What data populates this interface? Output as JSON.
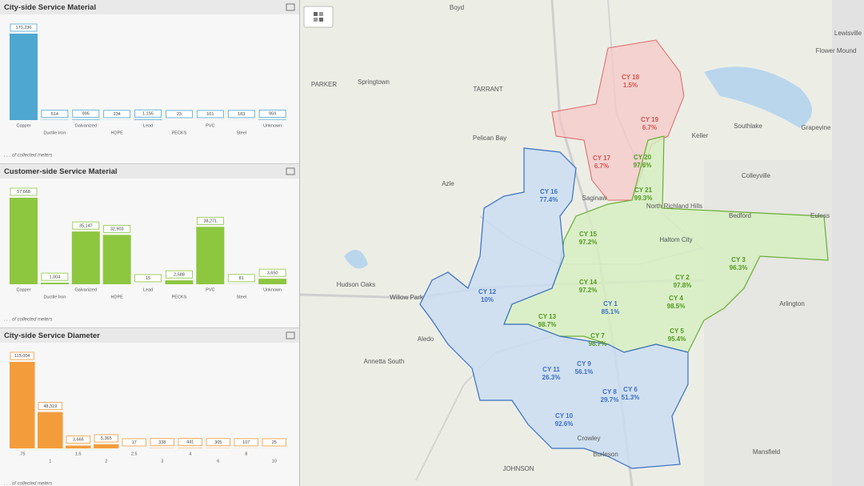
{
  "panels": [
    {
      "type": "bar",
      "title": "City-side Service Material",
      "color": "#4ea7d0",
      "categories": [
        "Copper",
        "Ductile Iron",
        "Galvanized",
        "HDPE",
        "Lead",
        "PECKS",
        "PVC",
        "Steel",
        "Unknown"
      ],
      "values": [
        170236,
        514,
        995,
        234,
        1155,
        23,
        101,
        183,
        959
      ],
      "value_labels": [
        "170,236",
        "514",
        "995",
        "234",
        "1,155",
        "23",
        "101",
        "183",
        "959"
      ],
      "footer": ". . . of collected meters"
    },
    {
      "type": "bar",
      "title": "Customer-side Service Material",
      "color": "#8dc63f",
      "categories": [
        "Copper",
        "Ductile Iron",
        "Galvanized",
        "HDPE",
        "Lead",
        "PECKS",
        "PVC",
        "Steel",
        "Unknown"
      ],
      "values": [
        57668,
        1004,
        35147,
        32903,
        15,
        2588,
        38271,
        81,
        3650
      ],
      "value_labels": [
        "57,668",
        "1,004",
        "35,147",
        "32,903",
        "15",
        "2,588",
        "38,271",
        "81",
        "3,650"
      ],
      "footer": ". . . of collected meters"
    },
    {
      "type": "bar",
      "title": "City-side Service Diameter",
      "color": "#f39c3c",
      "categories": [
        ".75",
        "1",
        "1.5",
        "2",
        "2.5",
        "3",
        "4",
        "6",
        "8",
        "10"
      ],
      "values": [
        115004,
        48319,
        3666,
        5365,
        17,
        338,
        441,
        305,
        107,
        25
      ],
      "value_labels": [
        "115,004",
        "48,319",
        "3,666",
        "5,365",
        "17",
        "338",
        "441",
        "305",
        "107",
        "25"
      ],
      "footer": ". . . of collected meters"
    }
  ],
  "map": {
    "zones": [
      {
        "name": "CY 1",
        "percent": "85.1%",
        "color": "#3a6fc4"
      },
      {
        "name": "CY 2",
        "percent": "97.8%",
        "color": "#4f9a1c"
      },
      {
        "name": "CY 3",
        "percent": "96.3%",
        "color": "#4f9a1c"
      },
      {
        "name": "CY 4",
        "percent": "98.5%",
        "color": "#4f9a1c"
      },
      {
        "name": "CY 5",
        "percent": "95.4%",
        "color": "#4f9a1c"
      },
      {
        "name": "CY 6",
        "percent": "51.3%",
        "color": "#3a6fc4"
      },
      {
        "name": "CY 7",
        "percent": "98.7%",
        "color": "#4f9a1c"
      },
      {
        "name": "CY 8",
        "percent": "29.7%",
        "color": "#3a6fc4"
      },
      {
        "name": "CY 9",
        "percent": "56.1%",
        "color": "#3a6fc4"
      },
      {
        "name": "CY 10",
        "percent": "92.6%",
        "color": "#3a6fc4"
      },
      {
        "name": "CY 11",
        "percent": "26.3%",
        "color": "#3a6fc4"
      },
      {
        "name": "CY 12",
        "percent": "10%",
        "color": "#3a6fc4"
      },
      {
        "name": "CY 13",
        "percent": "98.7%",
        "color": "#4f9a1c"
      },
      {
        "name": "CY 14",
        "percent": "97.2%",
        "color": "#4f9a1c"
      },
      {
        "name": "CY 15",
        "percent": "97.2%",
        "color": "#4f9a1c"
      },
      {
        "name": "CY 16",
        "percent": "77.4%",
        "color": "#3a6fc4"
      },
      {
        "name": "CY 17",
        "percent": "6.7%",
        "color": "#d9534f"
      },
      {
        "name": "CY 18",
        "percent": "1.5%",
        "color": "#d9534f"
      },
      {
        "name": "CY 19",
        "percent": "6.7%",
        "color": "#d9534f"
      },
      {
        "name": "CY 20",
        "percent": "97.6%",
        "color": "#4f9a1c"
      },
      {
        "name": "CY 21",
        "percent": "99.3%",
        "color": "#4f9a1c"
      }
    ],
    "places": [
      "Keller",
      "Southlake",
      "Grapevine",
      "Colleyville",
      "North Richland Hills",
      "Haltom City",
      "Bedford",
      "Euless",
      "Arlington",
      "Mansfield",
      "Burleson",
      "Azle",
      "Saginaw",
      "Aledo",
      "Springtown",
      "PARKER",
      "TARRANT",
      "JOHNSON",
      "Flower Mound",
      "Lewisville",
      "Hudson Oaks",
      "Willow Park",
      "Annetta South",
      "Crowley",
      "Pelican Bay",
      "Boyd"
    ]
  }
}
